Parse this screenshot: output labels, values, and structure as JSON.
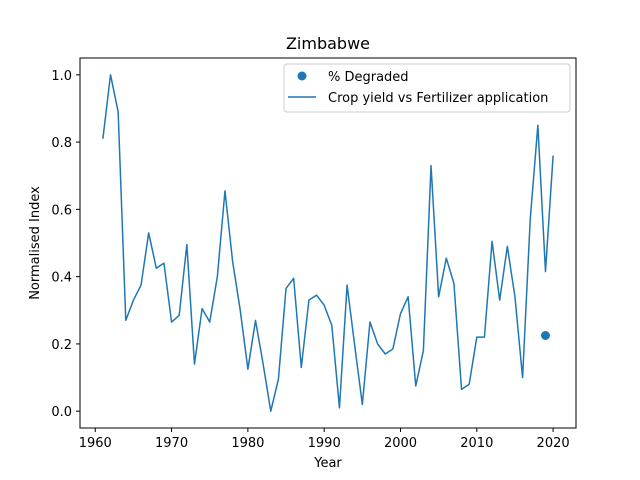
{
  "chart_data": {
    "type": "line",
    "title": "Zimbabwe",
    "xlabel": "Year",
    "ylabel": "Normalised Index",
    "xlim": [
      1958,
      2023
    ],
    "ylim": [
      -0.05,
      1.05
    ],
    "xticks": [
      1960,
      1970,
      1980,
      1990,
      2000,
      2010,
      2020
    ],
    "yticks": [
      0.0,
      0.2,
      0.4,
      0.6,
      0.8,
      1.0
    ],
    "xtick_labels": [
      "1960",
      "1970",
      "1980",
      "1990",
      "2000",
      "2010",
      "2020"
    ],
    "ytick_labels": [
      "0.0",
      "0.2",
      "0.4",
      "0.6",
      "0.8",
      "1.0"
    ],
    "grid": false,
    "legend": "upper-right",
    "series": [
      {
        "name": "% Degraded",
        "kind": "scatter",
        "color": "#1f77b4",
        "x": [
          2019
        ],
        "y": [
          0.225
        ]
      },
      {
        "name": "Crop yield vs Fertilizer application",
        "kind": "line",
        "color": "#1f77b4",
        "x": [
          1961,
          1962,
          1963,
          1964,
          1965,
          1966,
          1967,
          1968,
          1969,
          1970,
          1971,
          1972,
          1973,
          1974,
          1975,
          1976,
          1977,
          1978,
          1979,
          1980,
          1981,
          1982,
          1983,
          1984,
          1985,
          1986,
          1987,
          1988,
          1989,
          1990,
          1991,
          1992,
          1993,
          1994,
          1995,
          1996,
          1997,
          1998,
          1999,
          2000,
          2001,
          2002,
          2003,
          2004,
          2005,
          2006,
          2007,
          2008,
          2009,
          2010,
          2011,
          2012,
          2013,
          2014,
          2015,
          2016,
          2017,
          2018,
          2019,
          2020
        ],
        "y": [
          0.81,
          1.0,
          0.89,
          0.27,
          0.33,
          0.375,
          0.53,
          0.425,
          0.44,
          0.265,
          0.285,
          0.495,
          0.14,
          0.305,
          0.265,
          0.4,
          0.655,
          0.445,
          0.3,
          0.125,
          0.27,
          0.14,
          0.0,
          0.095,
          0.365,
          0.395,
          0.13,
          0.33,
          0.345,
          0.315,
          0.255,
          0.01,
          0.375,
          0.195,
          0.02,
          0.265,
          0.2,
          0.17,
          0.185,
          0.29,
          0.34,
          0.075,
          0.18,
          0.73,
          0.34,
          0.455,
          0.38,
          0.065,
          0.08,
          0.22,
          0.22,
          0.505,
          0.33,
          0.49,
          0.34,
          0.1,
          0.57,
          0.85,
          0.415,
          0.76
        ]
      }
    ]
  }
}
